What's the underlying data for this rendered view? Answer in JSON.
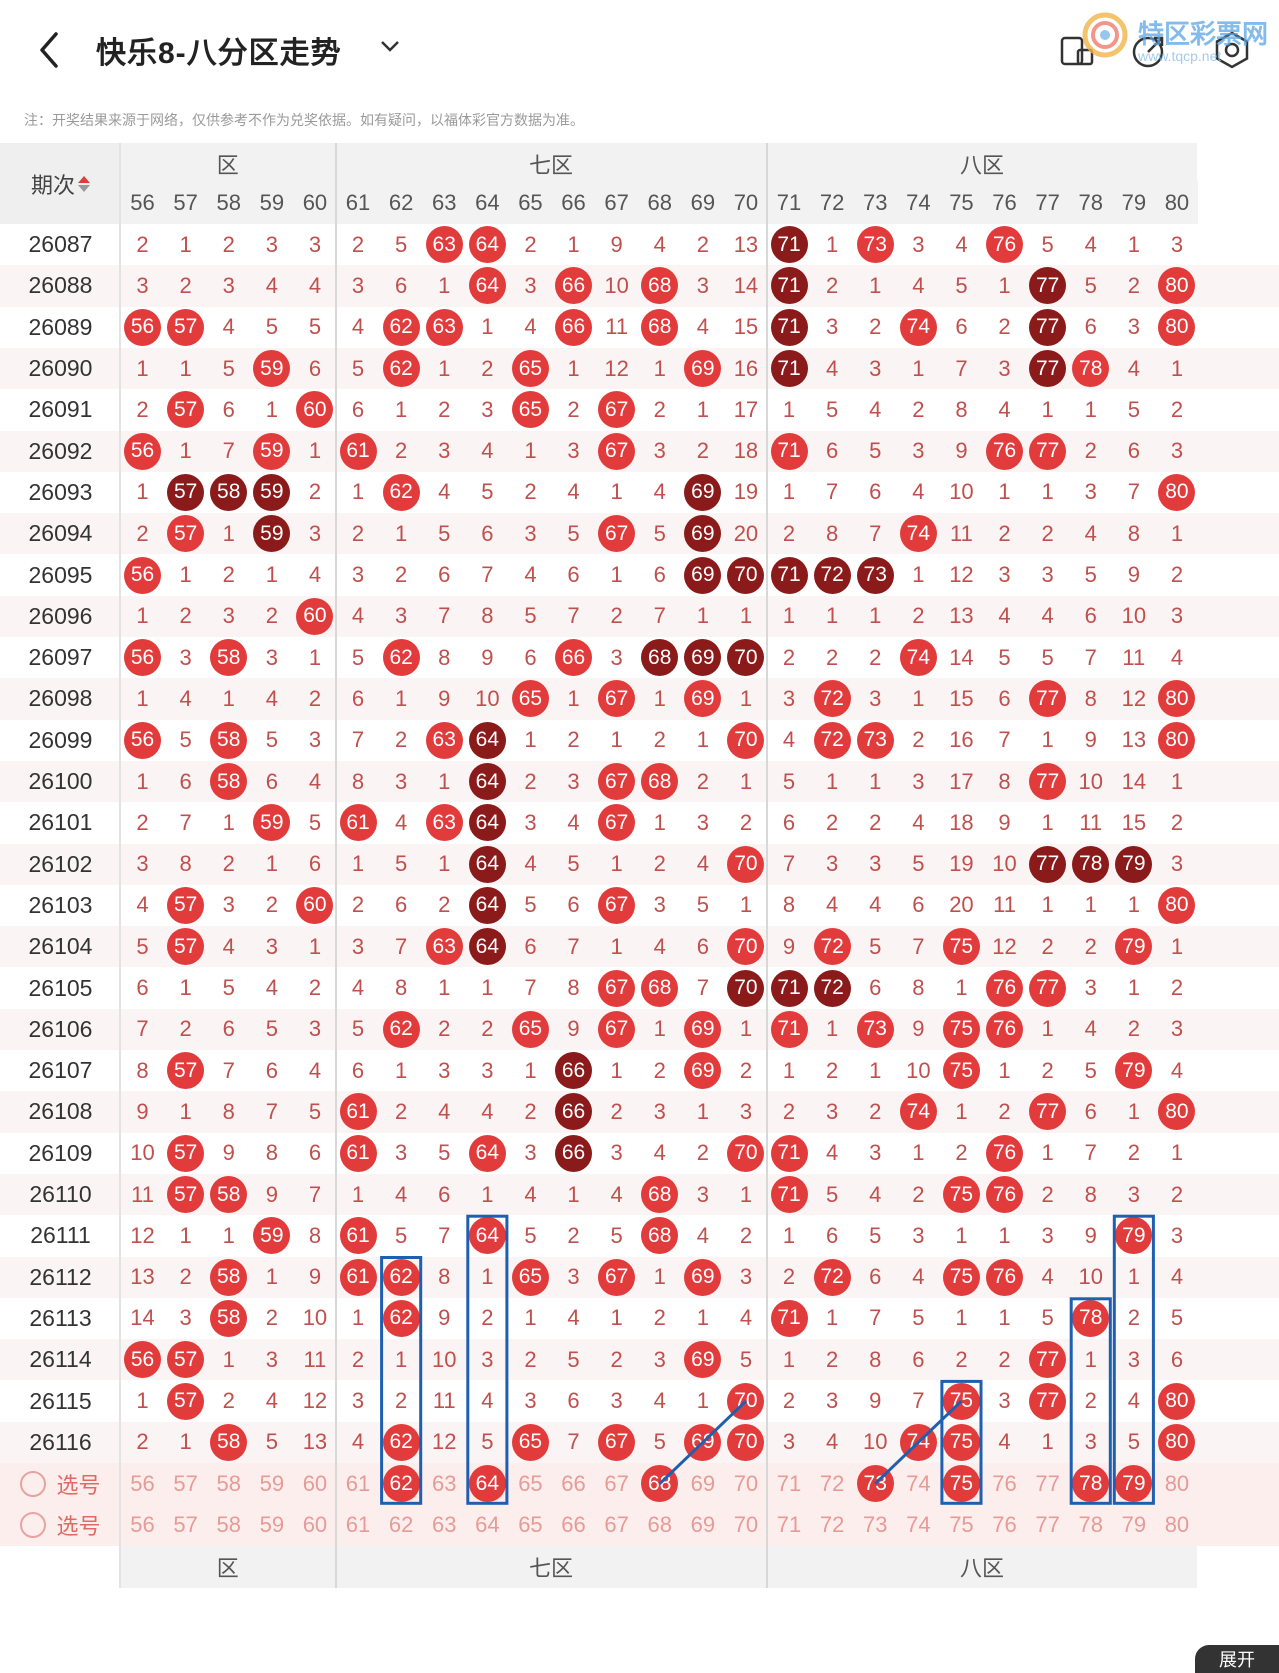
{
  "header": {
    "title": "快乐8-八分区走势",
    "watermark_title": "特区彩票网",
    "watermark_url": "www.tqcp.net"
  },
  "note": "注：开奖结果来源于网络，仅供参考不作为兑奖依据。如有疑问，以福体彩官方数据为准。",
  "zones": [
    {
      "label": "六区",
      "shown": "六区"
    },
    {
      "label": "七区"
    },
    {
      "label": "八区"
    }
  ],
  "issue_header": "期次",
  "columns": [
    56,
    57,
    58,
    59,
    60,
    61,
    62,
    63,
    64,
    65,
    66,
    67,
    68,
    69,
    70,
    71,
    72,
    73,
    74,
    75,
    76,
    77,
    78,
    79,
    80
  ],
  "rows": [
    {
      "issue": "26087",
      "cells": [
        2,
        1,
        2,
        3,
        3,
        2,
        5,
        "63",
        "64",
        2,
        1,
        9,
        4,
        2,
        13,
        "71",
        1,
        "73",
        3,
        4,
        "76",
        5,
        4,
        1,
        3
      ]
    },
    {
      "issue": "26088",
      "cells": [
        3,
        2,
        3,
        4,
        4,
        3,
        6,
        1,
        "64",
        3,
        "66",
        10,
        "68",
        3,
        14,
        "71",
        2,
        1,
        4,
        5,
        1,
        "77",
        5,
        2,
        "80"
      ]
    },
    {
      "issue": "26089",
      "cells": [
        "56",
        "57",
        4,
        5,
        5,
        4,
        "62",
        "63",
        1,
        4,
        "66",
        11,
        "68",
        4,
        15,
        "71",
        3,
        2,
        "74",
        6,
        2,
        "77",
        6,
        3,
        "80"
      ]
    },
    {
      "issue": "26090",
      "cells": [
        1,
        1,
        5,
        "59",
        6,
        5,
        "62",
        1,
        2,
        "65",
        1,
        12,
        1,
        "69",
        16,
        "71",
        4,
        3,
        1,
        7,
        3,
        "77",
        "78",
        4,
        1
      ]
    },
    {
      "issue": "26091",
      "cells": [
        2,
        "57",
        6,
        1,
        "60",
        6,
        1,
        2,
        3,
        "65",
        2,
        "67",
        2,
        1,
        17,
        1,
        5,
        4,
        2,
        8,
        4,
        1,
        1,
        5,
        2
      ]
    },
    {
      "issue": "26092",
      "cells": [
        "56",
        1,
        7,
        "59",
        1,
        "61",
        2,
        3,
        4,
        1,
        3,
        "67",
        3,
        2,
        18,
        "71",
        6,
        5,
        3,
        9,
        "76",
        "77",
        2,
        6,
        3
      ]
    },
    {
      "issue": "26093",
      "cells": [
        1,
        "57",
        "58",
        "59",
        2,
        1,
        "62",
        4,
        5,
        2,
        4,
        1,
        4,
        "69",
        19,
        1,
        7,
        6,
        4,
        10,
        1,
        1,
        3,
        7,
        "80"
      ]
    },
    {
      "issue": "26094",
      "cells": [
        2,
        "57",
        1,
        "59",
        3,
        2,
        1,
        5,
        6,
        3,
        5,
        "67",
        5,
        "69",
        20,
        2,
        8,
        7,
        "74",
        11,
        2,
        2,
        4,
        8,
        1
      ]
    },
    {
      "issue": "26095",
      "cells": [
        "56",
        1,
        2,
        1,
        4,
        3,
        2,
        6,
        7,
        4,
        6,
        1,
        6,
        "69",
        "70",
        "71",
        "72",
        "73",
        1,
        12,
        3,
        3,
        5,
        9,
        2
      ]
    },
    {
      "issue": "26096",
      "cells": [
        1,
        2,
        3,
        2,
        "60",
        4,
        3,
        7,
        8,
        5,
        7,
        2,
        7,
        1,
        1,
        1,
        1,
        1,
        2,
        13,
        4,
        4,
        6,
        10,
        3
      ]
    },
    {
      "issue": "26097",
      "cells": [
        "56",
        3,
        "58",
        3,
        1,
        5,
        "62",
        8,
        9,
        6,
        "66",
        3,
        "68",
        "69",
        "70",
        2,
        2,
        2,
        "74",
        14,
        5,
        5,
        7,
        11,
        4
      ]
    },
    {
      "issue": "26098",
      "cells": [
        1,
        4,
        1,
        4,
        2,
        6,
        1,
        9,
        10,
        "65",
        1,
        "67",
        1,
        "69",
        1,
        3,
        "72",
        3,
        1,
        15,
        6,
        "77",
        8,
        12,
        "80"
      ]
    },
    {
      "issue": "26099",
      "cells": [
        "56",
        5,
        "58",
        5,
        3,
        7,
        2,
        "63",
        "64",
        1,
        2,
        1,
        2,
        1,
        "70",
        4,
        "72",
        "73",
        2,
        16,
        7,
        1,
        9,
        13,
        "80"
      ]
    },
    {
      "issue": "26100",
      "cells": [
        1,
        6,
        "58",
        6,
        4,
        8,
        3,
        1,
        "64",
        2,
        3,
        "67",
        "68",
        2,
        1,
        5,
        1,
        1,
        3,
        17,
        8,
        "77",
        10,
        14,
        1
      ]
    },
    {
      "issue": "26101",
      "cells": [
        2,
        7,
        1,
        "59",
        5,
        "61",
        4,
        "63",
        "64",
        3,
        4,
        "67",
        1,
        3,
        2,
        6,
        2,
        2,
        4,
        18,
        9,
        1,
        11,
        15,
        2
      ]
    },
    {
      "issue": "26102",
      "cells": [
        3,
        8,
        2,
        1,
        6,
        1,
        5,
        1,
        "64",
        4,
        5,
        1,
        2,
        4,
        "70",
        7,
        3,
        3,
        5,
        19,
        10,
        "77",
        "78",
        "79",
        3
      ]
    },
    {
      "issue": "26103",
      "cells": [
        4,
        "57",
        3,
        2,
        "60",
        2,
        6,
        2,
        "64",
        5,
        6,
        "67",
        3,
        5,
        1,
        8,
        4,
        4,
        6,
        20,
        11,
        1,
        1,
        1,
        "80"
      ]
    },
    {
      "issue": "26104",
      "cells": [
        5,
        "57",
        4,
        3,
        1,
        3,
        7,
        "63",
        "64",
        6,
        7,
        1,
        4,
        6,
        "70",
        9,
        "72",
        5,
        7,
        "75",
        12,
        2,
        2,
        "79",
        1
      ]
    },
    {
      "issue": "26105",
      "cells": [
        6,
        1,
        5,
        4,
        2,
        4,
        8,
        1,
        1,
        7,
        8,
        "67",
        "68",
        7,
        "70",
        "71",
        "72",
        6,
        8,
        1,
        "76",
        "77",
        3,
        1,
        2
      ]
    },
    {
      "issue": "26106",
      "cells": [
        7,
        2,
        6,
        5,
        3,
        5,
        "62",
        2,
        2,
        "65",
        9,
        "67",
        1,
        "69",
        1,
        "71",
        1,
        "73",
        9,
        "75",
        "76",
        1,
        4,
        2,
        3
      ]
    },
    {
      "issue": "26107",
      "cells": [
        8,
        "57",
        7,
        6,
        4,
        6,
        1,
        3,
        3,
        1,
        "66",
        1,
        2,
        "69",
        2,
        1,
        2,
        1,
        10,
        "75",
        1,
        2,
        5,
        "79",
        4
      ]
    },
    {
      "issue": "26108",
      "cells": [
        9,
        1,
        8,
        7,
        5,
        "61",
        2,
        4,
        4,
        2,
        "66",
        2,
        3,
        1,
        3,
        2,
        3,
        2,
        "74",
        1,
        2,
        "77",
        6,
        1,
        "80"
      ]
    },
    {
      "issue": "26109",
      "cells": [
        10,
        "57",
        9,
        8,
        6,
        "61",
        3,
        5,
        "64",
        3,
        "66",
        3,
        4,
        2,
        "70",
        "71",
        4,
        3,
        1,
        2,
        "76",
        1,
        7,
        2,
        1
      ]
    },
    {
      "issue": "26110",
      "cells": [
        11,
        "57",
        "58",
        9,
        7,
        1,
        4,
        6,
        1,
        4,
        1,
        4,
        "68",
        3,
        1,
        "71",
        5,
        4,
        2,
        "75",
        "76",
        2,
        8,
        3,
        2
      ]
    },
    {
      "issue": "26111",
      "cells": [
        12,
        1,
        1,
        "59",
        8,
        "61",
        5,
        7,
        "64",
        5,
        2,
        5,
        "68",
        4,
        2,
        1,
        6,
        5,
        3,
        1,
        1,
        3,
        9,
        "79",
        3
      ]
    },
    {
      "issue": "26112",
      "cells": [
        13,
        2,
        "58",
        1,
        9,
        "61",
        "62",
        8,
        1,
        "65",
        3,
        "67",
        1,
        "69",
        3,
        2,
        "72",
        6,
        4,
        "75",
        "76",
        4,
        10,
        1,
        4
      ]
    },
    {
      "issue": "26113",
      "cells": [
        14,
        3,
        "58",
        2,
        10,
        1,
        "62",
        9,
        2,
        1,
        4,
        1,
        2,
        1,
        4,
        "71",
        1,
        7,
        5,
        1,
        1,
        5,
        "78",
        2,
        5
      ]
    },
    {
      "issue": "26114",
      "cells": [
        "56",
        "57",
        1,
        3,
        11,
        2,
        1,
        10,
        3,
        2,
        5,
        2,
        3,
        "69",
        5,
        1,
        2,
        8,
        6,
        2,
        2,
        "77",
        1,
        3,
        6
      ]
    },
    {
      "issue": "26115",
      "cells": [
        1,
        "57",
        2,
        4,
        12,
        3,
        2,
        11,
        4,
        3,
        6,
        3,
        4,
        1,
        "70",
        2,
        3,
        9,
        7,
        "75",
        3,
        "77",
        2,
        4,
        "80"
      ]
    },
    {
      "issue": "26116",
      "cells": [
        2,
        1,
        "58",
        5,
        13,
        4,
        "62",
        12,
        5,
        "65",
        7,
        "67",
        5,
        "69",
        "70",
        3,
        4,
        10,
        "74",
        "75",
        4,
        1,
        3,
        5,
        "80"
      ]
    }
  ],
  "dark_balls": [
    "26087:71",
    "26088:71",
    "26088:77",
    "26089:71",
    "26089:77",
    "26090:71",
    "26090:77",
    "26093:57",
    "26093:58",
    "26093:59",
    "26093:69",
    "26094:59",
    "26094:69",
    "26095:69",
    "26095:70",
    "26095:71",
    "26095:72",
    "26095:73",
    "26097:68",
    "26097:69",
    "26097:70",
    "26099:64",
    "26100:64",
    "26101:64",
    "26102:64",
    "26102:77",
    "26102:78",
    "26102:79",
    "26103:64",
    "26104:64",
    "26105:70",
    "26105:71",
    "26105:72",
    "26107:66",
    "26108:66",
    "26109:66"
  ],
  "select_rows": [
    {
      "label": "选号",
      "picked": [
        "62",
        "64",
        "68",
        "73",
        "75",
        "78",
        "79"
      ]
    },
    {
      "label": "选号",
      "picked": []
    }
  ],
  "expand_label": "展开",
  "colors": {
    "ball": "#e23b3b",
    "ball_dark": "#8b1a1a",
    "box": "#1f5fb0"
  }
}
